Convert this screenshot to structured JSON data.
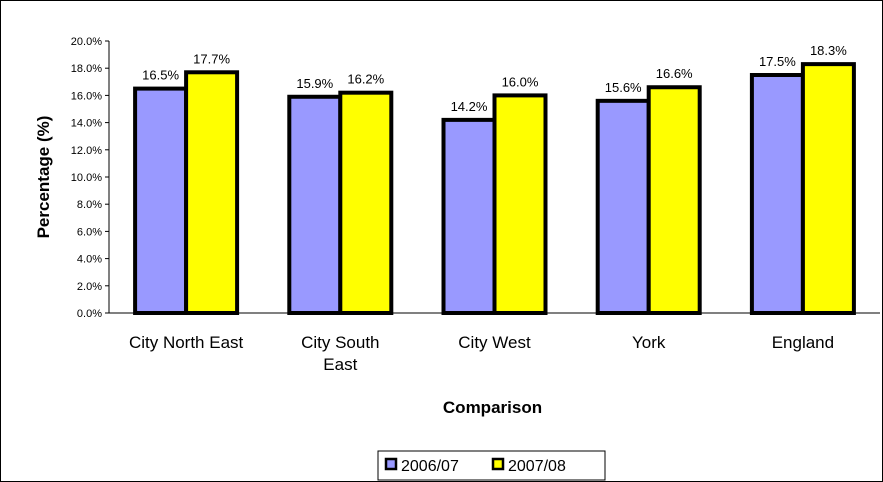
{
  "chart_data": {
    "type": "bar",
    "title": "",
    "xlabel": "Comparison",
    "ylabel": "Percentage (%)",
    "ylim": [
      0,
      20
    ],
    "y_ticks": [
      "0.0%",
      "2.0%",
      "4.0%",
      "6.0%",
      "8.0%",
      "10.0%",
      "12.0%",
      "14.0%",
      "16.0%",
      "18.0%",
      "20.0%"
    ],
    "categories": [
      [
        "City North East"
      ],
      [
        "City South",
        "East"
      ],
      [
        "City West"
      ],
      [
        "York"
      ],
      [
        "England"
      ]
    ],
    "series": [
      {
        "name": "2006/07",
        "color": "#9999ff",
        "values": [
          16.5,
          15.9,
          14.2,
          15.6,
          17.5
        ],
        "labels": [
          "16.5%",
          "15.9%",
          "14.2%",
          "15.6%",
          "17.5%"
        ]
      },
      {
        "name": "2007/08",
        "color": "#ffff00",
        "values": [
          17.7,
          16.2,
          16.0,
          16.6,
          18.3
        ],
        "labels": [
          "17.7%",
          "16.2%",
          "16.0%",
          "16.6%",
          "18.3%"
        ]
      }
    ],
    "grid": false,
    "legend_position": "bottom"
  }
}
